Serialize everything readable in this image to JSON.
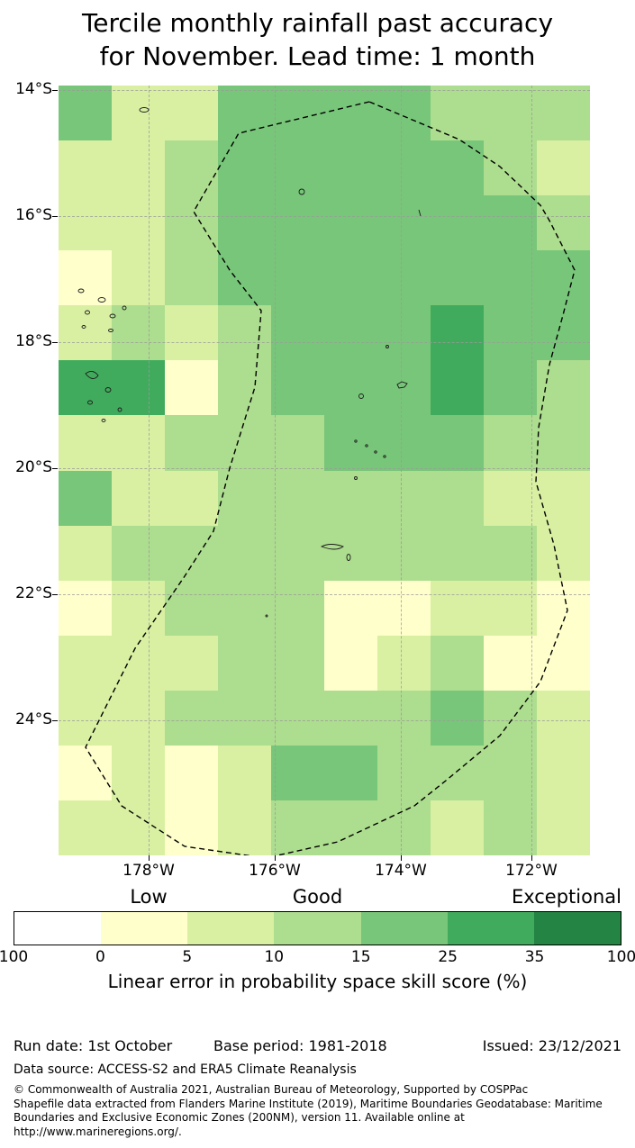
{
  "title": {
    "line1": "Tercile monthly rainfall past accuracy",
    "line2": "for November. Lead time: 1 month"
  },
  "map": {
    "lat_ticks": [
      "14°S",
      "16°S",
      "18°S",
      "20°S",
      "22°S",
      "24°S"
    ],
    "lon_ticks": [
      "178°W",
      "176°W",
      "174°W",
      "172°W"
    ]
  },
  "colorbar": {
    "category_labels": [
      "Low",
      "Good",
      "Exceptional"
    ],
    "tick_labels": [
      "100",
      "0",
      "5",
      "10",
      "15",
      "25",
      "35",
      "100"
    ],
    "axis_label": "Linear error in probability space skill score (%)"
  },
  "chart_data": {
    "type": "heatmap",
    "title": "Tercile monthly rainfall past accuracy for November. Lead time: 1 month",
    "value_label": "Linear error in probability space skill score (%)",
    "lat_ticks_deg_south": [
      14,
      16,
      18,
      20,
      22,
      24
    ],
    "lon_ticks_deg_west": [
      178,
      176,
      174,
      172
    ],
    "lat_range_deg_south": [
      13.9,
      26.1
    ],
    "lon_range_deg_west": [
      179.4,
      171.1
    ],
    "skill_categories": [
      "Low",
      "Good",
      "Exceptional"
    ],
    "skill_bins_percent": [
      [
        -100,
        0
      ],
      [
        0,
        5
      ],
      [
        5,
        10
      ],
      [
        10,
        15
      ],
      [
        15,
        25
      ],
      [
        25,
        35
      ],
      [
        35,
        100
      ]
    ],
    "bin_colors": [
      "#ffffff",
      "#ffffcc",
      "#d9f0a3",
      "#addd8e",
      "#78c679",
      "#41ab5d",
      "#238443"
    ],
    "grid_rows_north_to_south": 14,
    "grid_cols_west_to_east": 10,
    "grid_bin_indices": [
      [
        4,
        2,
        2,
        4,
        4,
        4,
        4,
        3,
        3,
        3
      ],
      [
        2,
        2,
        3,
        4,
        4,
        4,
        4,
        4,
        3,
        2
      ],
      [
        2,
        2,
        3,
        4,
        4,
        4,
        4,
        4,
        4,
        3
      ],
      [
        1,
        2,
        3,
        4,
        4,
        4,
        4,
        4,
        4,
        4
      ],
      [
        2,
        3,
        2,
        3,
        4,
        4,
        4,
        5,
        4,
        4
      ],
      [
        5,
        5,
        1,
        3,
        4,
        4,
        4,
        5,
        4,
        3
      ],
      [
        2,
        2,
        3,
        3,
        3,
        4,
        4,
        4,
        3,
        3
      ],
      [
        4,
        2,
        2,
        3,
        3,
        3,
        3,
        3,
        2,
        2
      ],
      [
        2,
        3,
        3,
        3,
        3,
        3,
        3,
        3,
        3,
        2
      ],
      [
        1,
        2,
        3,
        3,
        3,
        1,
        1,
        2,
        2,
        1
      ],
      [
        2,
        2,
        2,
        3,
        3,
        1,
        2,
        3,
        1,
        1
      ],
      [
        2,
        2,
        3,
        3,
        3,
        3,
        3,
        4,
        3,
        2
      ],
      [
        1,
        2,
        1,
        2,
        4,
        4,
        3,
        3,
        3,
        2
      ],
      [
        2,
        2,
        1,
        2,
        3,
        3,
        3,
        2,
        3,
        2
      ]
    ],
    "boundary": "Exclusive Economic Zone (dashed outline)"
  },
  "footer": {
    "run_date": "Run date: 1st October",
    "base_period": "Base period: 1981-2018",
    "issued": "Issued: 23/12/2021",
    "data_source": "Data source: ACCESS-S2 and ERA5 Climate Reanalysis",
    "copyright_line1": "© Commonwealth of Australia 2021, Australian Bureau of Meteorology, Supported by COSPPac",
    "copyright_line2": "Shapefile data extracted from Flanders Marine Institute (2019), Maritime Boundaries Geodatabase: Maritime Boundaries and Exclusive Economic Zones (200NM), version 11. Available online at http://www.marineregions.org/."
  }
}
